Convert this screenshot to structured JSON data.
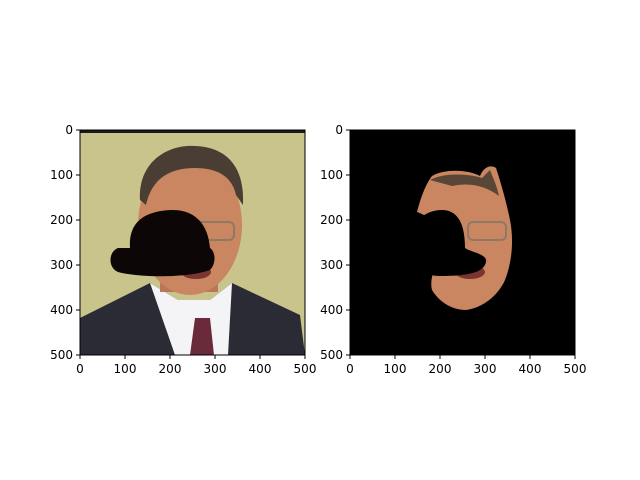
{
  "chart_data": [
    {
      "type": "image",
      "title": "",
      "xlabel": "",
      "ylabel": "",
      "xlim": [
        0,
        500
      ],
      "ylim": [
        500,
        0
      ],
      "xticks": [
        0,
        100,
        200,
        300,
        400,
        500
      ],
      "yticks": [
        0,
        100,
        200,
        300,
        400,
        500
      ],
      "image_content": "face-photo-with-bowler-hat-mask",
      "colors": {
        "background": "#c9c48c",
        "hat": "#0d0606",
        "suit": "#2b2b35",
        "shirt": "#f4f4f6",
        "tie": "#6a2a3a",
        "skin": "#c98660"
      }
    },
    {
      "type": "image",
      "title": "",
      "xlabel": "",
      "ylabel": "",
      "xlim": [
        0,
        500
      ],
      "ylim": [
        500,
        0
      ],
      "xticks": [
        0,
        100,
        200,
        300,
        400,
        500
      ],
      "yticks": [
        0,
        100,
        200,
        300,
        400,
        500
      ],
      "image_content": "segmented-face-on-black",
      "colors": {
        "background": "#000000",
        "skin": "#c98660"
      }
    }
  ]
}
